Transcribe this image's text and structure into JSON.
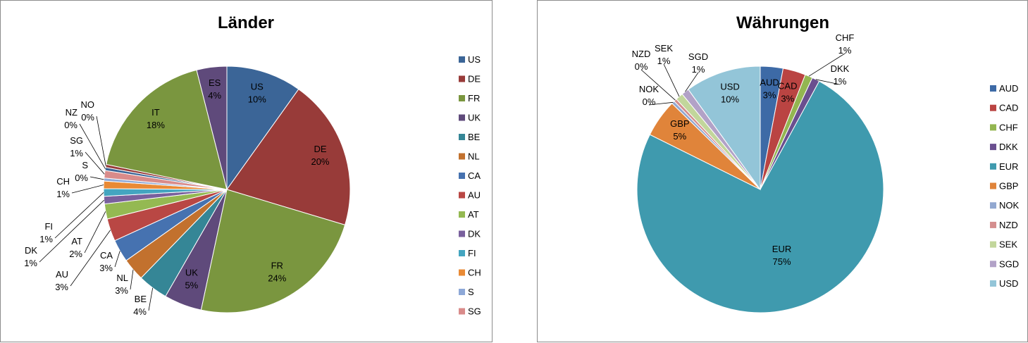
{
  "chart_data": [
    {
      "type": "pie",
      "title": "Länder",
      "categories": [
        "US",
        "DE",
        "FR",
        "UK",
        "BE",
        "NL",
        "CA",
        "AU",
        "AT",
        "DK",
        "FI",
        "CH",
        "S",
        "SG",
        "NZ",
        "NO",
        "IT",
        "ES"
      ],
      "values": [
        10,
        20,
        24,
        5,
        4,
        3,
        3,
        3,
        2,
        1,
        1,
        1,
        0.4,
        1,
        0.4,
        0.4,
        18,
        4
      ],
      "data_labels": [
        "US\n10%",
        "DE\n20%",
        "FR\n24%",
        "UK\n5%",
        "BE\n4%",
        "NL\n3%",
        "CA\n3%",
        "AU\n3%",
        "AT\n2%",
        "DK\n1%",
        "FI\n1%",
        "CH\n1%",
        "S\n0%",
        "SG\n1%",
        "NZ\n0%",
        "NO\n0%",
        "IT\n18%",
        "ES\n4%"
      ],
      "colors": [
        "#3b6597",
        "#983b39",
        "#7a963f",
        "#5f4a7b",
        "#358696",
        "#c2712e",
        "#4672b0",
        "#b94744",
        "#94b952",
        "#79609d",
        "#44a5c0",
        "#e98a35",
        "#8da8d7",
        "#d98b8a"
      ],
      "legend": [
        "US",
        "DE",
        "FR",
        "UK",
        "BE",
        "NL",
        "CA",
        "AU",
        "AT",
        "DK",
        "FI",
        "CH",
        "S",
        "SG"
      ],
      "legend_position": "right"
    },
    {
      "type": "pie",
      "title": "Währungen",
      "categories": [
        "AUD",
        "CAD",
        "CHF",
        "DKK",
        "EUR",
        "GBP",
        "NOK",
        "NZD",
        "SEK",
        "SGD",
        "USD"
      ],
      "values": [
        3,
        3,
        1,
        1,
        75,
        5,
        0.4,
        0.4,
        1,
        1,
        10
      ],
      "data_labels": [
        "AUD\n3%",
        "CAD\n3%",
        "CHF\n1%",
        "DKK\n1%",
        "EUR\n75%",
        "GBP\n5%",
        "NOK\n0%",
        "NZD\n0%",
        "SEK\n1%",
        "SGD\n1%",
        "USD\n10%"
      ],
      "colors": [
        "#3d6aa6",
        "#ba4442",
        "#93b651",
        "#6a4f8f",
        "#3f9aae",
        "#e0843a",
        "#92a8d0",
        "#d48e8e",
        "#c2d69b",
        "#b2a2c7",
        "#93c5d8"
      ],
      "legend": [
        "AUD",
        "CAD",
        "CHF",
        "DKK",
        "EUR",
        "GBP",
        "NOK",
        "NZD",
        "SEK",
        "SGD",
        "USD"
      ],
      "legend_position": "right"
    }
  ]
}
